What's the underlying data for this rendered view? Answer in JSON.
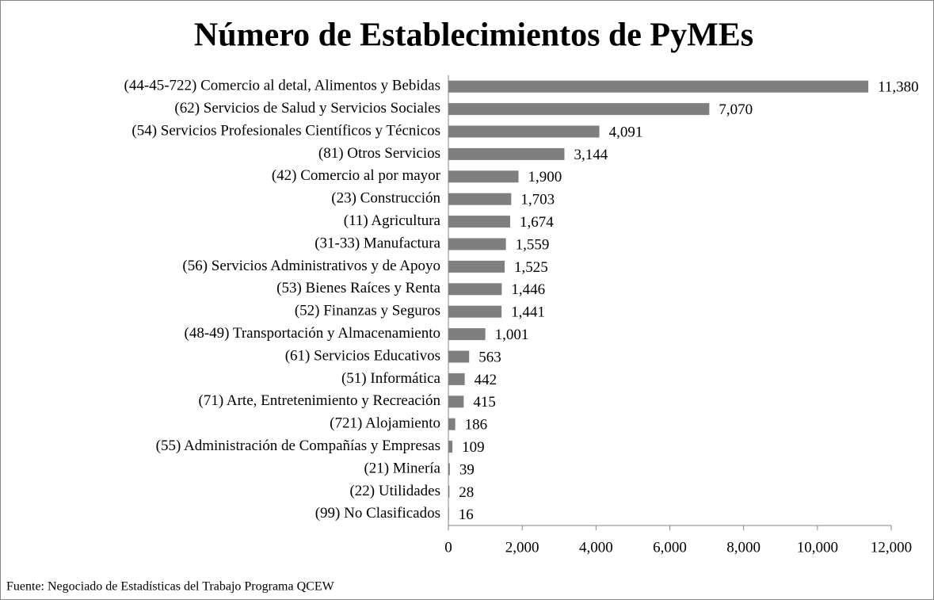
{
  "chart_data": {
    "type": "barh",
    "title": "Número de Establecimientos de PyMEs",
    "categories": [
      "(44-45-722) Comercio al detal, Alimentos y Bebidas",
      "(62) Servicios de Salud y Servicios Sociales",
      "(54) Servicios Profesionales Científicos y Técnicos",
      "(81) Otros Servicios",
      "(42) Comercio al por mayor",
      "(23) Construcción",
      "(11) Agricultura",
      "(31-33) Manufactura",
      "(56) Servicios Administrativos y de Apoyo",
      "(53) Bienes Raíces y Renta",
      "(52) Finanzas y Seguros",
      "(48-49) Transportación y Almacenamiento",
      "(61) Servicios Educativos",
      "(51) Informática",
      "(71) Arte, Entretenimiento y Recreación",
      "(721) Alojamiento",
      "(55) Administración de Compañías y Empresas",
      "(21) Minería",
      "(22) Utilidades",
      "(99) No Clasificados"
    ],
    "values": [
      11380,
      7070,
      4091,
      3144,
      1900,
      1703,
      1674,
      1559,
      1525,
      1446,
      1441,
      1001,
      563,
      442,
      415,
      186,
      109,
      39,
      28,
      16
    ],
    "value_labels": [
      "11,380",
      "7,070",
      "4,091",
      "3,144",
      "1,900",
      "1,703",
      "1,674",
      "1,559",
      "1,525",
      "1,446",
      "1,441",
      "1,001",
      "563",
      "442",
      "415",
      "186",
      "109",
      "39",
      "28",
      "16"
    ],
    "color": "#7f7f7f",
    "xlim": [
      0,
      12000
    ],
    "xticks": [
      0,
      {
        "value": 2000,
        "label": "2,000"
      },
      {
        "value": 4000,
        "label": "4,000"
      },
      {
        "value": 6000,
        "label": "6,000"
      },
      {
        "value": 8000,
        "label": "8,000"
      },
      {
        "value": 10000,
        "label": "10,000"
      },
      {
        "value": 12000,
        "label": "12,000"
      }
    ],
    "grid": false,
    "source": "Fuente: Negociado de Estadísticas del Trabajo Programa QCEW"
  }
}
